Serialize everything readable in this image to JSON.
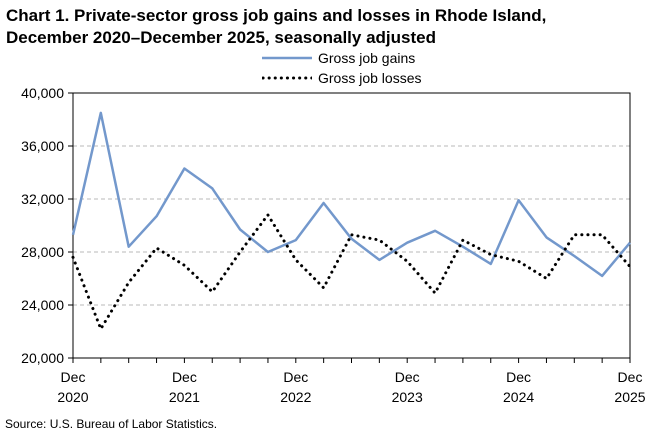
{
  "title_line1": "Chart 1. Private-sector gross job gains and losses in Rhode Island,",
  "title_line2": "December 2020–December 2025, seasonally adjusted",
  "source": "Source: U.S. Bureau of Labor Statistics.",
  "colors": {
    "gains": "#7398cc",
    "losses": "#000000",
    "grid": "#b9b9b9"
  },
  "chart_data": {
    "type": "line",
    "title": "Chart 1. Private-sector gross job gains and losses in Rhode Island, December 2020–December 2025, seasonally adjusted",
    "xlabel": "",
    "ylabel": "",
    "ylim": [
      20000,
      40000
    ],
    "yticks": [
      20000,
      24000,
      28000,
      32000,
      36000,
      40000
    ],
    "ytick_labels": [
      "20,000",
      "24,000",
      "28,000",
      "32,000",
      "36,000",
      "40,000"
    ],
    "x_tick_labels": [
      {
        "month": "Dec",
        "year": "2020"
      },
      {
        "month": "Dec",
        "year": "2021"
      },
      {
        "month": "Dec",
        "year": "2022"
      },
      {
        "month": "Dec",
        "year": "2023"
      },
      {
        "month": "Dec",
        "year": "2024"
      },
      {
        "month": "Dec",
        "year": "2025"
      }
    ],
    "x": [
      "Dec 2020",
      "Mar 2021",
      "Jun 2021",
      "Sep 2021",
      "Dec 2021",
      "Mar 2022",
      "Jun 2022",
      "Sep 2022",
      "Dec 2022",
      "Mar 2023",
      "Jun 2023",
      "Sep 2023",
      "Dec 2023",
      "Mar 2024",
      "Jun 2024",
      "Sep 2024",
      "Dec 2024",
      "Mar 2025",
      "Jun 2025",
      "Sep 2025",
      "Dec 2025"
    ],
    "grid": true,
    "legend": "top-center",
    "series": [
      {
        "name": "Gross job gains",
        "style": "solid",
        "values": [
          29300,
          38500,
          28400,
          30700,
          34300,
          32800,
          29700,
          28000,
          28900,
          31700,
          29000,
          27400,
          28700,
          29600,
          28400,
          27100,
          31900,
          29100,
          27700,
          26200,
          28700
        ]
      },
      {
        "name": "Gross job losses",
        "style": "dotted",
        "values": [
          27600,
          22200,
          25700,
          28300,
          27000,
          25000,
          28000,
          30800,
          27400,
          25300,
          29300,
          28900,
          27300,
          24900,
          28900,
          27800,
          27300,
          26000,
          29300,
          29300,
          26900
        ]
      }
    ]
  }
}
